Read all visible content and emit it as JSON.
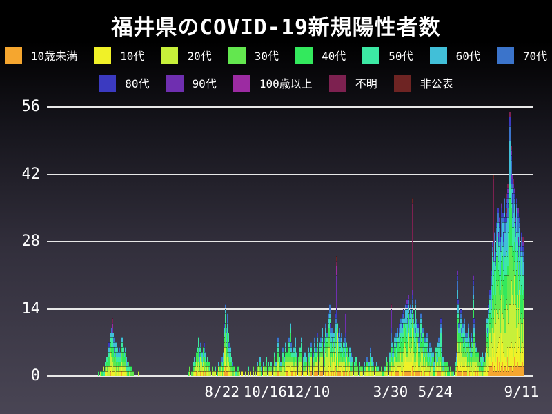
{
  "title": "福井県のCOVID-19新規陽性者数",
  "colors": {
    "background_top": "#000000",
    "background_bottom": "#494554",
    "grid": "#e8e8e8",
    "text": "#ffffff"
  },
  "chart_data": {
    "type": "bar",
    "stacked": true,
    "title": "福井県のCOVID-19新規陽性者数",
    "xlabel": "",
    "ylabel": "",
    "ylim": [
      0,
      56
    ],
    "yticks": [
      0,
      14,
      28,
      42,
      56
    ],
    "grid": "horizontal",
    "legend_position": "top",
    "axis_days": 546,
    "xticks": [
      {
        "day": 157,
        "label": "8/22"
      },
      {
        "day": 211,
        "label": "10/16"
      },
      {
        "day": 265,
        "label": "12/10"
      },
      {
        "day": 368,
        "label": "3/30"
      },
      {
        "day": 424,
        "label": "5/24"
      },
      {
        "day": 532,
        "label": "9/11"
      }
    ],
    "groups": [
      {
        "label": "10歳未満",
        "color": "#F5A62F"
      },
      {
        "label": "10代",
        "color": "#F0F128"
      },
      {
        "label": "20代",
        "color": "#C7F03A"
      },
      {
        "label": "30代",
        "color": "#63E74F"
      },
      {
        "label": "40代",
        "color": "#33E95D"
      },
      {
        "label": "50代",
        "color": "#3CE9A4"
      },
      {
        "label": "60代",
        "color": "#41BFD8"
      },
      {
        "label": "70代",
        "color": "#3B74CB"
      },
      {
        "label": "80代",
        "color": "#3B3AC0"
      },
      {
        "label": "90代",
        "color": "#6F2FB0"
      },
      {
        "label": "100歳以上",
        "color": "#9C2BA2"
      },
      {
        "label": "不明",
        "color": "#7D2150"
      },
      {
        "label": "非公表",
        "color": "#6E2423"
      }
    ],
    "legend_row_split": 8,
    "mix_seed": 42,
    "mixes": {
      "default": [
        0.06,
        0.11,
        0.21,
        0.15,
        0.13,
        0.12,
        0.1,
        0.06,
        0.03,
        0.015,
        0.002,
        0.008,
        0.005
      ],
      "elder": [
        0.01,
        0.02,
        0.04,
        0.05,
        0.06,
        0.08,
        0.1,
        0.13,
        0.15,
        0.22,
        0.06,
        0.06,
        0.02
      ],
      "unknown": [
        0.04,
        0.06,
        0.1,
        0.08,
        0.08,
        0.08,
        0.06,
        0.04,
        0.02,
        0.01,
        0.01,
        0.38,
        0.04
      ]
    },
    "daily": [
      [
        2,
        1
      ],
      [
        4,
        1
      ],
      [
        6,
        1
      ],
      [
        8,
        2
      ],
      [
        9,
        1
      ],
      [
        10,
        3
      ],
      [
        11,
        2
      ],
      [
        12,
        4
      ],
      [
        13,
        3
      ],
      [
        14,
        5
      ],
      [
        15,
        7
      ],
      [
        16,
        6
      ],
      [
        17,
        9
      ],
      [
        18,
        10
      ],
      [
        19,
        12,
        "elder"
      ],
      [
        20,
        9
      ],
      [
        21,
        8
      ],
      [
        22,
        6
      ],
      [
        23,
        7
      ],
      [
        24,
        5
      ],
      [
        25,
        6
      ],
      [
        26,
        5
      ],
      [
        27,
        4
      ],
      [
        28,
        6
      ],
      [
        29,
        5
      ],
      [
        30,
        4
      ],
      [
        31,
        8
      ],
      [
        32,
        6
      ],
      [
        33,
        3
      ],
      [
        34,
        5
      ],
      [
        35,
        6
      ],
      [
        36,
        4
      ],
      [
        37,
        3
      ],
      [
        38,
        2
      ],
      [
        39,
        3
      ],
      [
        40,
        2
      ],
      [
        41,
        1
      ],
      [
        42,
        2
      ],
      [
        43,
        1
      ],
      [
        45,
        1
      ],
      [
        52,
        1
      ],
      [
        114,
        1
      ],
      [
        116,
        2
      ],
      [
        118,
        1
      ],
      [
        120,
        3
      ],
      [
        121,
        2
      ],
      [
        122,
        4
      ],
      [
        123,
        3
      ],
      [
        124,
        5
      ],
      [
        125,
        4
      ],
      [
        126,
        6
      ],
      [
        127,
        8
      ],
      [
        128,
        6
      ],
      [
        129,
        5
      ],
      [
        130,
        7
      ],
      [
        131,
        5
      ],
      [
        132,
        4
      ],
      [
        133,
        6
      ],
      [
        134,
        7
      ],
      [
        135,
        5
      ],
      [
        136,
        4
      ],
      [
        137,
        3
      ],
      [
        138,
        4
      ],
      [
        139,
        2
      ],
      [
        140,
        3
      ],
      [
        141,
        2
      ],
      [
        142,
        1
      ],
      [
        144,
        2
      ],
      [
        146,
        1
      ],
      [
        148,
        2
      ],
      [
        150,
        1
      ],
      [
        152,
        3
      ],
      [
        154,
        2
      ],
      [
        156,
        4
      ],
      [
        157,
        3
      ],
      [
        158,
        5
      ],
      [
        159,
        8
      ],
      [
        160,
        11
      ],
      [
        161,
        15
      ],
      [
        162,
        10
      ],
      [
        163,
        13
      ],
      [
        164,
        9
      ],
      [
        165,
        7
      ],
      [
        166,
        5
      ],
      [
        167,
        6
      ],
      [
        168,
        4
      ],
      [
        169,
        3
      ],
      [
        170,
        2
      ],
      [
        172,
        2
      ],
      [
        174,
        1
      ],
      [
        176,
        2
      ],
      [
        178,
        1
      ],
      [
        181,
        1
      ],
      [
        186,
        1
      ],
      [
        189,
        2
      ],
      [
        192,
        1
      ],
      [
        195,
        2
      ],
      [
        198,
        1
      ],
      [
        200,
        3
      ],
      [
        202,
        2
      ],
      [
        204,
        4
      ],
      [
        206,
        2
      ],
      [
        208,
        3
      ],
      [
        210,
        2
      ],
      [
        212,
        4
      ],
      [
        214,
        3
      ],
      [
        216,
        2
      ],
      [
        218,
        3
      ],
      [
        220,
        2
      ],
      [
        222,
        5
      ],
      [
        224,
        3
      ],
      [
        226,
        8
      ],
      [
        228,
        4
      ],
      [
        230,
        3
      ],
      [
        232,
        6
      ],
      [
        234,
        4
      ],
      [
        236,
        7
      ],
      [
        238,
        5
      ],
      [
        240,
        8
      ],
      [
        242,
        11
      ],
      [
        243,
        7
      ],
      [
        244,
        5
      ],
      [
        246,
        6
      ],
      [
        248,
        8
      ],
      [
        250,
        5
      ],
      [
        252,
        4
      ],
      [
        254,
        6
      ],
      [
        256,
        8
      ],
      [
        258,
        4
      ],
      [
        260,
        5
      ],
      [
        262,
        4
      ],
      [
        264,
        6
      ],
      [
        266,
        5
      ],
      [
        268,
        7
      ],
      [
        270,
        5
      ],
      [
        272,
        8
      ],
      [
        274,
        6
      ],
      [
        276,
        9
      ],
      [
        278,
        7
      ],
      [
        280,
        8
      ],
      [
        282,
        10
      ],
      [
        284,
        8
      ],
      [
        286,
        11
      ],
      [
        288,
        9
      ],
      [
        290,
        13
      ],
      [
        291,
        15
      ],
      [
        292,
        11
      ],
      [
        293,
        9
      ],
      [
        294,
        10
      ],
      [
        295,
        8
      ],
      [
        296,
        9
      ],
      [
        297,
        7
      ],
      [
        298,
        10
      ],
      [
        299,
        13
      ],
      [
        300,
        25,
        "elder"
      ],
      [
        301,
        11
      ],
      [
        302,
        9
      ],
      [
        303,
        10
      ],
      [
        304,
        8
      ],
      [
        305,
        7
      ],
      [
        306,
        9
      ],
      [
        307,
        6
      ],
      [
        308,
        7
      ],
      [
        309,
        5
      ],
      [
        310,
        8
      ],
      [
        311,
        13,
        "elder"
      ],
      [
        312,
        7
      ],
      [
        313,
        6
      ],
      [
        314,
        5
      ],
      [
        315,
        4
      ],
      [
        316,
        6
      ],
      [
        317,
        4
      ],
      [
        318,
        5
      ],
      [
        319,
        3
      ],
      [
        320,
        4
      ],
      [
        322,
        3
      ],
      [
        324,
        4
      ],
      [
        326,
        2
      ],
      [
        328,
        3
      ],
      [
        330,
        2
      ],
      [
        332,
        2
      ],
      [
        334,
        3
      ],
      [
        336,
        2
      ],
      [
        338,
        4
      ],
      [
        340,
        3
      ],
      [
        342,
        6
      ],
      [
        344,
        4
      ],
      [
        346,
        3
      ],
      [
        348,
        2
      ],
      [
        350,
        3
      ],
      [
        352,
        2
      ],
      [
        354,
        1
      ],
      [
        356,
        2
      ],
      [
        358,
        1
      ],
      [
        360,
        2
      ],
      [
        362,
        4
      ],
      [
        364,
        3
      ],
      [
        366,
        5
      ],
      [
        368,
        15,
        "elder"
      ],
      [
        369,
        7
      ],
      [
        370,
        5
      ],
      [
        371,
        6
      ],
      [
        372,
        8
      ],
      [
        373,
        6
      ],
      [
        374,
        9
      ],
      [
        375,
        7
      ],
      [
        376,
        10
      ],
      [
        377,
        8
      ],
      [
        378,
        11
      ],
      [
        379,
        9
      ],
      [
        380,
        12
      ],
      [
        381,
        10
      ],
      [
        382,
        13
      ],
      [
        383,
        11
      ],
      [
        384,
        14
      ],
      [
        385,
        12
      ],
      [
        386,
        15
      ],
      [
        387,
        13
      ],
      [
        388,
        16
      ],
      [
        389,
        12
      ],
      [
        390,
        17
      ],
      [
        391,
        13
      ],
      [
        392,
        15
      ],
      [
        393,
        12
      ],
      [
        394,
        14
      ],
      [
        395,
        37,
        "unknown"
      ],
      [
        396,
        13
      ],
      [
        397,
        11
      ],
      [
        398,
        16
      ],
      [
        399,
        10
      ],
      [
        400,
        12
      ],
      [
        401,
        9
      ],
      [
        402,
        11
      ],
      [
        403,
        8
      ],
      [
        404,
        10
      ],
      [
        405,
        13
      ],
      [
        406,
        9
      ],
      [
        407,
        7
      ],
      [
        408,
        10
      ],
      [
        409,
        6
      ],
      [
        410,
        8
      ],
      [
        411,
        5
      ],
      [
        412,
        7
      ],
      [
        413,
        9
      ],
      [
        414,
        6
      ],
      [
        415,
        5
      ],
      [
        416,
        7
      ],
      [
        417,
        4
      ],
      [
        418,
        6
      ],
      [
        419,
        5
      ],
      [
        420,
        4
      ],
      [
        421,
        5
      ],
      [
        422,
        3
      ],
      [
        423,
        4
      ],
      [
        424,
        6
      ],
      [
        425,
        5
      ],
      [
        426,
        7
      ],
      [
        427,
        4
      ],
      [
        428,
        8
      ],
      [
        429,
        10
      ],
      [
        430,
        12
      ],
      [
        431,
        6
      ],
      [
        432,
        3
      ],
      [
        433,
        4
      ],
      [
        434,
        2
      ],
      [
        435,
        3
      ],
      [
        436,
        1
      ],
      [
        437,
        2
      ],
      [
        438,
        3
      ],
      [
        439,
        1
      ],
      [
        440,
        2
      ],
      [
        441,
        1
      ],
      [
        442,
        2
      ],
      [
        444,
        1
      ],
      [
        446,
        1
      ],
      [
        448,
        2
      ],
      [
        449,
        3
      ],
      [
        450,
        5
      ],
      [
        451,
        22
      ],
      [
        452,
        16
      ],
      [
        453,
        11
      ],
      [
        454,
        8
      ],
      [
        455,
        14
      ],
      [
        456,
        10
      ],
      [
        457,
        7
      ],
      [
        458,
        11
      ],
      [
        459,
        8
      ],
      [
        460,
        12
      ],
      [
        461,
        9
      ],
      [
        462,
        6
      ],
      [
        463,
        9
      ],
      [
        464,
        5
      ],
      [
        465,
        11
      ],
      [
        466,
        8
      ],
      [
        467,
        6
      ],
      [
        468,
        9
      ],
      [
        469,
        5
      ],
      [
        470,
        8
      ],
      [
        471,
        21
      ],
      [
        472,
        12
      ],
      [
        473,
        7
      ],
      [
        474,
        5
      ],
      [
        475,
        6
      ],
      [
        476,
        4
      ],
      [
        477,
        5
      ],
      [
        478,
        3
      ],
      [
        479,
        2
      ],
      [
        480,
        4
      ],
      [
        481,
        3
      ],
      [
        482,
        5
      ],
      [
        483,
        3
      ],
      [
        484,
        4
      ],
      [
        485,
        3
      ],
      [
        486,
        5
      ],
      [
        487,
        8
      ],
      [
        488,
        12
      ],
      [
        489,
        10
      ],
      [
        490,
        15
      ],
      [
        491,
        13
      ],
      [
        492,
        18
      ],
      [
        493,
        16
      ],
      [
        494,
        22
      ],
      [
        495,
        28
      ],
      [
        496,
        42,
        "unknown"
      ],
      [
        497,
        25
      ],
      [
        498,
        30
      ],
      [
        499,
        26
      ],
      [
        500,
        32
      ],
      [
        501,
        28
      ],
      [
        502,
        35
      ],
      [
        503,
        30
      ],
      [
        504,
        33
      ],
      [
        505,
        29
      ],
      [
        506,
        36
      ],
      [
        507,
        31
      ],
      [
        508,
        34
      ],
      [
        509,
        30
      ],
      [
        510,
        37
      ],
      [
        511,
        33
      ],
      [
        512,
        38
      ],
      [
        513,
        35
      ],
      [
        514,
        40
      ],
      [
        515,
        36
      ],
      [
        516,
        44
      ],
      [
        517,
        55
      ],
      [
        518,
        48
      ],
      [
        519,
        42
      ],
      [
        520,
        38
      ],
      [
        521,
        41
      ],
      [
        522,
        35
      ],
      [
        523,
        39
      ],
      [
        524,
        33
      ],
      [
        525,
        37
      ],
      [
        526,
        31
      ],
      [
        527,
        35
      ],
      [
        528,
        29
      ],
      [
        529,
        33
      ],
      [
        530,
        27
      ],
      [
        531,
        30
      ],
      [
        532,
        26
      ],
      [
        533,
        29
      ],
      [
        534,
        25
      ]
    ]
  }
}
